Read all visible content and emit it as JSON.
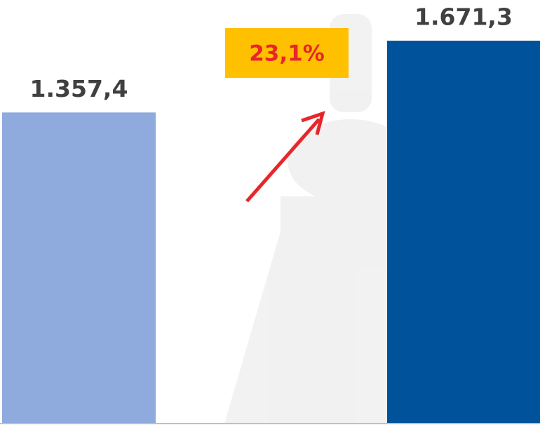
{
  "chart_data": {
    "type": "bar",
    "categories": [
      null,
      null
    ],
    "values": [
      1357.4,
      1671.3
    ],
    "value_labels": [
      "1.357,4",
      "1.671,3"
    ],
    "colors": [
      "#8faadc",
      "#00529b"
    ],
    "annotation": "23,1%"
  }
}
